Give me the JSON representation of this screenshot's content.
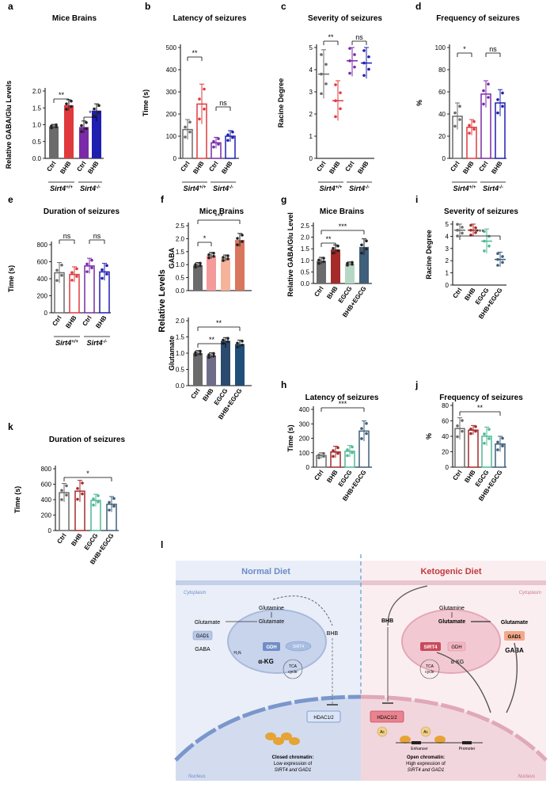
{
  "colors": {
    "gray": "#6b6b6b",
    "red": "#e03a3e",
    "purple": "#7b2aa8",
    "blue": "#1f1fb0",
    "salmonLight": "#f59a9a",
    "salmon": "#f5b49a",
    "coral": "#d9775e",
    "darkRed": "#a52a2a",
    "mint": "#b7d7c6",
    "slate": "#3f5f7a",
    "teal": "#4fb895",
    "navy": "#2c4a6e",
    "blueNavy": "#1f4e79"
  },
  "charts": {
    "a": {
      "letter": "a",
      "title": "Mice Brains",
      "ylabel": "Relative GABA/Glu Levels",
      "ticks": [
        "0.0",
        "0.5",
        "1.0",
        "1.5",
        "2.0"
      ],
      "ylim": [
        0,
        2
      ],
      "categories": [
        "Ctrl",
        "BHB",
        "Ctrl",
        "BHB"
      ],
      "values": [
        0.95,
        1.58,
        0.93,
        1.42
      ],
      "errors": [
        0.06,
        0.16,
        0.18,
        0.2
      ],
      "groups": [
        "Sirt4",
        "Sirt4"
      ],
      "group_sup": [
        "+/+",
        "-/-"
      ],
      "sig": [
        "**",
        "*"
      ]
    },
    "b": {
      "letter": "b",
      "title": "Latency of seizures",
      "ylabel": "Time (s)",
      "ticks": [
        "0",
        "100",
        "200",
        "300",
        "400",
        "500"
      ],
      "ylim": [
        0,
        500
      ],
      "categories": [
        "Ctrl",
        "BHB",
        "Ctrl",
        "BHB"
      ],
      "values": [
        130,
        245,
        70,
        100
      ],
      "errors": [
        45,
        90,
        25,
        25
      ],
      "groups": [
        "Sirt4",
        "Sirt4"
      ],
      "group_sup": [
        "+/+",
        "-/-"
      ],
      "sig": [
        "**",
        "ns"
      ]
    },
    "c": {
      "letter": "c",
      "title": "Severity of seizures",
      "ylabel": "Racine Degree",
      "ticks": [
        "0",
        "1",
        "2",
        "3",
        "4",
        "5"
      ],
      "ylim": [
        0,
        5
      ],
      "categories": [
        "Ctrl",
        "BHB",
        "Ctrl",
        "BHB"
      ],
      "values": [
        3.8,
        2.6,
        4.4,
        4.3
      ],
      "errors": [
        1.1,
        0.9,
        0.7,
        0.7
      ],
      "groups": [
        "Sirt4",
        "Sirt4"
      ],
      "group_sup": [
        "+/+",
        "-/-"
      ],
      "sig": [
        "**",
        "ns"
      ]
    },
    "d": {
      "letter": "d",
      "title": "Frequency of seizures",
      "ylabel": "%",
      "ticks": [
        "0",
        "20",
        "40",
        "60",
        "80",
        "100"
      ],
      "ylim": [
        0,
        100
      ],
      "categories": [
        "Ctrl",
        "BHB",
        "Ctrl",
        "BHB"
      ],
      "values": [
        38,
        28,
        58,
        50
      ],
      "errors": [
        12,
        7,
        12,
        12
      ],
      "groups": [
        "Sirt4",
        "Sirt4"
      ],
      "group_sup": [
        "+/+",
        "-/-"
      ],
      "sig": [
        "*",
        "ns"
      ]
    },
    "e": {
      "letter": "e",
      "title": "Duration of seizures",
      "ylabel": "Time (s)",
      "ticks": [
        "0",
        "200",
        "400",
        "600",
        "800"
      ],
      "ylim": [
        0,
        800
      ],
      "categories": [
        "Ctrl",
        "BHB",
        "Ctrl",
        "BHB"
      ],
      "values": [
        470,
        450,
        550,
        480
      ],
      "errors": [
        120,
        90,
        90,
        100
      ],
      "groups": [
        "Sirt4",
        "Sirt4"
      ],
      "group_sup": [
        "+/+",
        "-/-"
      ],
      "sig": [
        "ns",
        "ns"
      ]
    },
    "f_top": {
      "letter": "f",
      "title": "Mice Brains",
      "ylabel": "GABA",
      "shared_ylabel": "Relative Levels",
      "ticks": [
        "0.0",
        "0.5",
        "1.0",
        "1.5",
        "2.0",
        "2.5"
      ],
      "ylim": [
        0,
        2.5
      ],
      "values": [
        0.98,
        1.35,
        1.25,
        1.95
      ],
      "errors": [
        0.1,
        0.12,
        0.12,
        0.25
      ],
      "sig": [
        "*",
        "***"
      ]
    },
    "f_bottom": {
      "ylabel": "Glutamate",
      "ticks": [
        "0.0",
        "0.5",
        "1.0",
        "1.5",
        "2.0"
      ],
      "ylim": [
        0,
        2
      ],
      "categories": [
        "Ctrl",
        "BHB",
        "EGCG",
        "BHB+EGCG"
      ],
      "values": [
        1.0,
        0.93,
        1.38,
        1.28
      ],
      "errors": [
        0.08,
        0.08,
        0.1,
        0.12
      ],
      "sig": [
        "**",
        "**"
      ]
    },
    "g": {
      "letter": "g",
      "title": "Mice Brains",
      "ylabel": "Relative GABA/Glu Level",
      "ticks": [
        "0.0",
        "0.5",
        "1.0",
        "1.5",
        "2.0",
        "2.5"
      ],
      "ylim": [
        0,
        2.5
      ],
      "categories": [
        "Ctrl",
        "BHB",
        "EGCG",
        "BHB+EGCG"
      ],
      "values": [
        0.98,
        1.47,
        0.85,
        1.58
      ],
      "errors": [
        0.15,
        0.2,
        0.08,
        0.35
      ],
      "sig": [
        "**",
        "***"
      ]
    },
    "h": {
      "letter": "h",
      "title": "Latency of seizures",
      "ylabel": "Time (s)",
      "ticks": [
        "0",
        "100",
        "200",
        "300",
        "400"
      ],
      "ylim": [
        0,
        400
      ],
      "categories": [
        "Ctrl",
        "BHB",
        "EGCG",
        "BHB+EGCG"
      ],
      "values": [
        80,
        105,
        110,
        250
      ],
      "errors": [
        20,
        40,
        40,
        70
      ],
      "sig": [
        "***"
      ]
    },
    "i": {
      "letter": "i",
      "title": "Severity of seizures",
      "ylabel": "Racine Degree",
      "ticks": [
        "0",
        "1",
        "2",
        "3",
        "4",
        "5"
      ],
      "ylim": [
        0,
        5
      ],
      "categories": [
        "Ctrl",
        "BHB",
        "EGCG",
        "BHB+EGCG"
      ],
      "values": [
        4.5,
        4.5,
        3.6,
        2.1
      ],
      "errors": [
        0.6,
        0.5,
        1.0,
        0.6
      ],
      "sig": [
        "***"
      ]
    },
    "j": {
      "letter": "j",
      "title": "Frequency of seizures",
      "ylabel": "%",
      "ticks": [
        "0",
        "20",
        "40",
        "60",
        "80"
      ],
      "ylim": [
        0,
        80
      ],
      "categories": [
        "Ctrl",
        "BHB",
        "EGCG",
        "BHB+EGCG"
      ],
      "values": [
        50,
        48,
        40,
        30
      ],
      "errors": [
        14,
        6,
        12,
        10
      ],
      "sig": [
        "**"
      ]
    },
    "k": {
      "letter": "k",
      "title": "Duration of seizures",
      "ylabel": "Time (s)",
      "ticks": [
        "0",
        "200",
        "400",
        "600",
        "800"
      ],
      "ylim": [
        0,
        800
      ],
      "categories": [
        "Ctrl",
        "BHB",
        "EGCG",
        "BHB+EGCG"
      ],
      "values": [
        490,
        510,
        390,
        340
      ],
      "errors": [
        120,
        140,
        80,
        100
      ],
      "sig": [
        "*"
      ]
    }
  },
  "chart_data": [
    {
      "type": "bar",
      "panel": "a",
      "title": "Mice Brains",
      "ylabel": "Relative GABA/Glu Levels",
      "categories": [
        "Ctrl Sirt4+/+",
        "BHB Sirt4+/+",
        "Ctrl Sirt4-/-",
        "BHB Sirt4-/-"
      ],
      "values": [
        0.95,
        1.58,
        0.93,
        1.42
      ],
      "ylim": [
        0,
        2
      ]
    },
    {
      "type": "bar",
      "panel": "b",
      "title": "Latency of seizures",
      "ylabel": "Time (s)",
      "categories": [
        "Ctrl Sirt4+/+",
        "BHB Sirt4+/+",
        "Ctrl Sirt4-/-",
        "BHB Sirt4-/-"
      ],
      "values": [
        130,
        245,
        70,
        100
      ],
      "ylim": [
        0,
        500
      ]
    },
    {
      "type": "scatter",
      "panel": "c",
      "title": "Severity of seizures",
      "ylabel": "Racine Degree",
      "categories": [
        "Ctrl Sirt4+/+",
        "BHB Sirt4+/+",
        "Ctrl Sirt4-/-",
        "BHB Sirt4-/-"
      ],
      "values": [
        3.8,
        2.6,
        4.4,
        4.3
      ],
      "ylim": [
        0,
        5
      ]
    },
    {
      "type": "bar",
      "panel": "d",
      "title": "Frequency of seizures",
      "ylabel": "%",
      "categories": [
        "Ctrl Sirt4+/+",
        "BHB Sirt4+/+",
        "Ctrl Sirt4-/-",
        "BHB Sirt4-/-"
      ],
      "values": [
        38,
        28,
        58,
        50
      ],
      "ylim": [
        0,
        100
      ]
    },
    {
      "type": "bar",
      "panel": "e",
      "title": "Duration of seizures",
      "ylabel": "Time (s)",
      "categories": [
        "Ctrl Sirt4+/+",
        "BHB Sirt4+/+",
        "Ctrl Sirt4-/-",
        "BHB Sirt4-/-"
      ],
      "values": [
        470,
        450,
        550,
        480
      ],
      "ylim": [
        0,
        800
      ]
    },
    {
      "type": "bar",
      "panel": "f",
      "title": "Mice Brains",
      "series": [
        {
          "name": "GABA",
          "values": [
            0.98,
            1.35,
            1.25,
            1.95
          ]
        },
        {
          "name": "Glutamate",
          "values": [
            1.0,
            0.93,
            1.38,
            1.28
          ]
        }
      ],
      "categories": [
        "Ctrl",
        "BHB",
        "EGCG",
        "BHB+EGCG"
      ],
      "ylabel": "Relative Levels"
    },
    {
      "type": "bar",
      "panel": "g",
      "title": "Mice Brains",
      "ylabel": "Relative GABA/Glu Level",
      "categories": [
        "Ctrl",
        "BHB",
        "EGCG",
        "BHB+EGCG"
      ],
      "values": [
        0.98,
        1.47,
        0.85,
        1.58
      ],
      "ylim": [
        0,
        2.5
      ]
    },
    {
      "type": "bar",
      "panel": "h",
      "title": "Latency of seizures",
      "ylabel": "Time (s)",
      "categories": [
        "Ctrl",
        "BHB",
        "EGCG",
        "BHB+EGCG"
      ],
      "values": [
        80,
        105,
        110,
        250
      ],
      "ylim": [
        0,
        400
      ]
    },
    {
      "type": "scatter",
      "panel": "i",
      "title": "Severity of seizures",
      "ylabel": "Racine Degree",
      "categories": [
        "Ctrl",
        "BHB",
        "EGCG",
        "BHB+EGCG"
      ],
      "values": [
        4.5,
        4.5,
        3.6,
        2.1
      ],
      "ylim": [
        0,
        5
      ]
    },
    {
      "type": "bar",
      "panel": "j",
      "title": "Frequency of seizures",
      "ylabel": "%",
      "categories": [
        "Ctrl",
        "BHB",
        "EGCG",
        "BHB+EGCG"
      ],
      "values": [
        50,
        48,
        40,
        30
      ],
      "ylim": [
        0,
        80
      ]
    },
    {
      "type": "bar",
      "panel": "k",
      "title": "Duration of seizures",
      "ylabel": "Time (s)",
      "categories": [
        "Ctrl",
        "BHB",
        "EGCG",
        "BHB+EGCG"
      ],
      "values": [
        490,
        510,
        390,
        340
      ],
      "ylim": [
        0,
        800
      ]
    }
  ],
  "diagram": {
    "letter": "l",
    "normal_title": "Normal Diet",
    "keto_title": "Ketogenic Diet",
    "cytoplasm": "Cytoplasm",
    "nucleus": "Nucleus",
    "n_glutamine": "Glutamine",
    "n_glutamate_left": "Glutamate",
    "n_glutamate": "Glutamate",
    "n_gad1": "GAD1",
    "n_gaba": "GABA",
    "n_h2n": "H₂N",
    "n_gdh": "GDH",
    "n_sirt4": "SIRT4",
    "n_akg": "α-KG",
    "n_tca": "TCA",
    "n_cycle": "cycle",
    "n_bhb": "BHB",
    "n_hdac": "HDAC1/2",
    "n_closed_title": "Closed chromatin:",
    "n_closed_1": "Low expression of",
    "n_closed_2": "SIRT4 and GAD1",
    "k_bhb": "BHB",
    "k_glutamine": "Glutamine",
    "k_glutamate_1": "Glutamate",
    "k_glutamate_2": "Glutamate",
    "k_sirt4": "SIRT4",
    "k_gdh": "GDH",
    "k_gad1": "GAD1",
    "k_gaba": "GABA",
    "k_akg": "α-KG",
    "k_tca": "TCA",
    "k_cycle": "cycle",
    "k_hdac": "HDAC1/2",
    "k_ac": "Ac",
    "k_enhancer": "Enhancer",
    "k_promoter": "Promoter",
    "k_open_title": "Open chromatin:",
    "k_open_1": "High expression of",
    "k_open_2": "SIRT4 and GAD1"
  }
}
